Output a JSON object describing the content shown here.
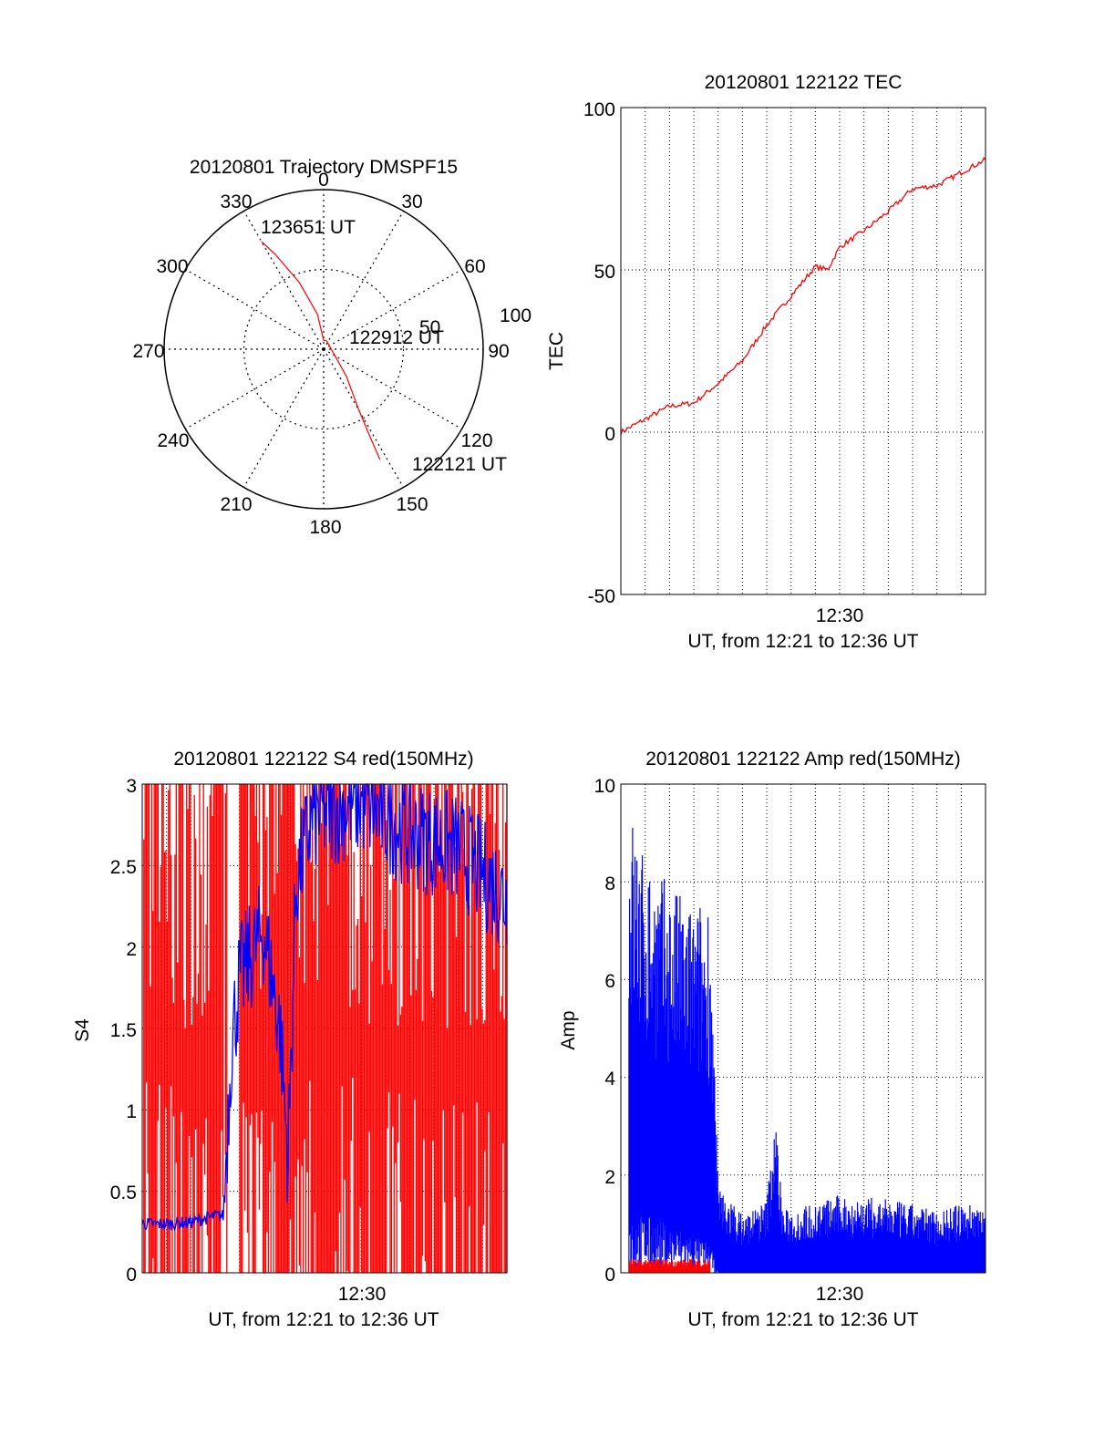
{
  "chart_data": [
    {
      "type": "polar",
      "title": "20120801 Trajectory DMSPF15",
      "angle_labels": [
        "0",
        "30",
        "60",
        "90",
        "120",
        "150",
        "180",
        "210",
        "240",
        "270",
        "300",
        "330"
      ],
      "radius_labels": [
        "50",
        "100"
      ],
      "trajectory": {
        "color": "#ff0000",
        "points_az_el": [
          [
            330,
            20
          ],
          [
            333,
            30
          ],
          [
            340,
            50
          ],
          [
            350,
            70
          ],
          [
            0,
            85
          ],
          [
            20,
            85
          ],
          [
            140,
            70
          ],
          [
            150,
            50
          ],
          [
            152,
            35
          ],
          [
            153,
            20
          ]
        ],
        "annotations": [
          {
            "text": "123651 UT",
            "at": "start"
          },
          {
            "text": "122912 UT",
            "at": "middle"
          },
          {
            "text": "122121 UT",
            "at": "end"
          }
        ]
      }
    },
    {
      "type": "line",
      "title": "20120801 122122 TEC",
      "xlabel": "UT, from 12:21 to 12:36 UT",
      "ylabel": "TEC",
      "xlim": [
        "12:21",
        "12:36"
      ],
      "ylim": [
        -50,
        100
      ],
      "yticks": [
        "100",
        "50",
        "0",
        "-50"
      ],
      "xticks": [
        "12:30"
      ],
      "grid": true,
      "series": [
        {
          "color": "#ff0000",
          "x": [
            "12:21:00",
            "12:22:00",
            "12:23:00",
            "12:24:00",
            "12:25:00",
            "12:26:00",
            "12:27:00",
            "12:28:00",
            "12:29:00",
            "12:29:30",
            "12:30:00",
            "12:31:00",
            "12:32:00",
            "12:33:00",
            "12:34:00",
            "12:35:00",
            "12:36:00"
          ],
          "y": [
            0,
            4,
            8,
            9,
            15,
            22,
            33,
            42,
            51,
            50,
            57,
            62,
            68,
            75,
            76,
            80,
            84
          ]
        }
      ]
    },
    {
      "type": "line",
      "title": "20120801 122122 S4 red(150MHz)",
      "xlabel": "UT, from 12:21 to 12:36 UT",
      "ylabel": "S4",
      "xlim": [
        "12:21",
        "12:36"
      ],
      "ylim": [
        0,
        3
      ],
      "yticks": [
        "3",
        "2.5",
        "2",
        "1.5",
        "1",
        "0.5",
        "0"
      ],
      "xticks": [
        "12:30"
      ],
      "grid": true,
      "series": [
        {
          "color": "#ff0000",
          "description": "dense spikes between 0 and 3 across the whole interval"
        },
        {
          "color": "#0000ff",
          "x": [
            "12:21:00",
            "12:22:00",
            "12:23:00",
            "12:24:00",
            "12:24:20",
            "12:24:40",
            "12:25:00",
            "12:26:00",
            "12:26:40",
            "12:27:00",
            "12:27:20",
            "12:28:00",
            "12:30:00",
            "12:32:00",
            "12:34:00",
            "12:36:00"
          ],
          "y": [
            0.3,
            0.3,
            0.31,
            0.35,
            0.35,
            1.4,
            1.8,
            2.1,
            1.5,
            0.7,
            2.4,
            2.8,
            2.9,
            2.7,
            2.6,
            2.3
          ]
        }
      ]
    },
    {
      "type": "line",
      "title": "20120801 122122 Amp red(150MHz)",
      "xlabel": "UT, from 12:21 to 12:36 UT",
      "ylabel": "Amp",
      "xlim": [
        "12:21",
        "12:36"
      ],
      "ylim": [
        0,
        10
      ],
      "yticks": [
        "10",
        "8",
        "6",
        "4",
        "2",
        "0"
      ],
      "xticks": [
        "12:30"
      ],
      "grid": true,
      "series": [
        {
          "color": "#0000ff",
          "x": [
            "12:21:20",
            "12:22:00",
            "12:23:00",
            "12:24:00",
            "12:24:40",
            "12:25:00",
            "12:26:00",
            "12:27:00",
            "12:27:20",
            "12:27:40",
            "12:28:00",
            "12:30:00",
            "12:32:00",
            "12:34:00",
            "12:36:00"
          ],
          "y_min": [
            1.3,
            1.2,
            1.0,
            0.8,
            0.6,
            0,
            0,
            0,
            0,
            0,
            0,
            0,
            0,
            0,
            0
          ],
          "y_max": [
            9.7,
            8.5,
            8.0,
            7.5,
            7.8,
            1.8,
            1.2,
            1.5,
            3.4,
            1.3,
            1.3,
            1.6,
            1.5,
            1.3,
            1.5
          ]
        },
        {
          "color": "#ff0000",
          "x": [
            "12:21:20",
            "12:22:00",
            "12:23:00",
            "12:24:00",
            "12:24:40"
          ],
          "y": [
            0.2,
            0.2,
            0.2,
            0.2,
            0.25
          ]
        }
      ]
    }
  ]
}
